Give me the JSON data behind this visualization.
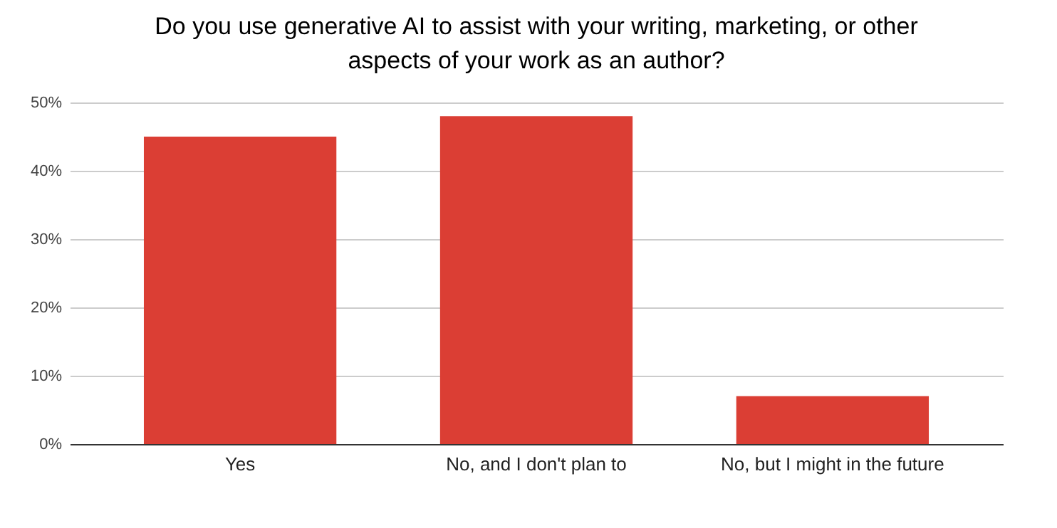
{
  "chart_data": {
    "type": "bar",
    "title": "Do you use generative AI to assist with your writing, marketing, or other aspects of your work as an author?",
    "categories": [
      "Yes",
      "No, and I don't plan to",
      "No, but I might in the future"
    ],
    "values": [
      45,
      48,
      7
    ],
    "color": "#db3e34",
    "ylim": [
      0,
      50
    ],
    "yticks": [
      {
        "value": 0,
        "label": "0%"
      },
      {
        "value": 10,
        "label": "10%"
      },
      {
        "value": 20,
        "label": "20%"
      },
      {
        "value": 30,
        "label": "30%"
      },
      {
        "value": 40,
        "label": "40%"
      },
      {
        "value": 50,
        "label": "50%"
      }
    ],
    "grid": "y"
  }
}
